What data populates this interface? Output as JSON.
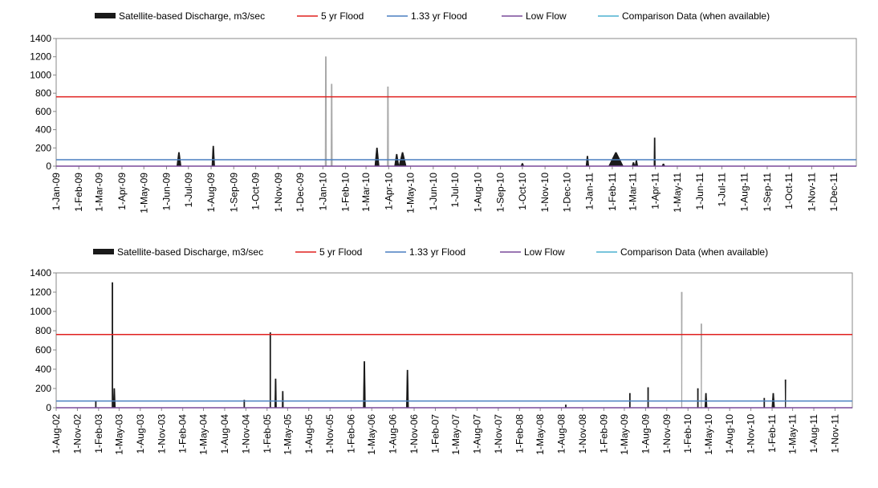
{
  "legend": [
    {
      "label": "Satellite-based Discharge, m3/sec",
      "kind": "area",
      "color": "#1a1a1a"
    },
    {
      "label": "5 yr Flood",
      "kind": "line",
      "color": "#e0201f"
    },
    {
      "label": "1.33 yr Flood",
      "kind": "line",
      "color": "#4a7fc0"
    },
    {
      "label": "Low Flow",
      "kind": "line",
      "color": "#7a4a9a"
    },
    {
      "label": "Comparison Data (when available)",
      "kind": "line",
      "color": "#4bb0d0"
    }
  ],
  "chart_data": [
    {
      "type": "area",
      "title": "",
      "xlabel": "",
      "ylabel": "",
      "ylim": [
        0,
        1400
      ],
      "yticks": [
        0,
        200,
        400,
        600,
        800,
        1000,
        1200,
        1400
      ],
      "grid": false,
      "legend_position": "top",
      "x_ticks": [
        "1-Jan-09",
        "1-Feb-09",
        "1-Mar-09",
        "1-Apr-09",
        "1-May-09",
        "1-Jun-09",
        "1-Jul-09",
        "1-Aug-09",
        "1-Sep-09",
        "1-Oct-09",
        "1-Nov-09",
        "1-Dec-09",
        "1-Jan-10",
        "1-Feb-10",
        "1-Mar-10",
        "1-Apr-10",
        "1-May-10",
        "1-Jun-10",
        "1-Jul-10",
        "1-Aug-10",
        "1-Sep-10",
        "1-Oct-10",
        "1-Nov-10",
        "1-Dec-10",
        "1-Jan-11",
        "1-Feb-11",
        "1-Mar-11",
        "1-Apr-11",
        "1-May-11",
        "1-Jun-11",
        "1-Jul-11",
        "1-Aug-11",
        "1-Sep-11",
        "1-Oct-11",
        "1-Nov-11",
        "1-Dec-11"
      ],
      "x_range": [
        "2009-01-01",
        "2012-01-01"
      ],
      "reference_lines": {
        "5 yr Flood": 760,
        "1.33 yr Flood": 70,
        "Low Flow": 0
      },
      "series": [
        {
          "name": "Satellite-based Discharge, m3/sec",
          "peaks": [
            {
              "date": "2009-06-18",
              "value": 150,
              "half_width_days": 3
            },
            {
              "date": "2009-08-04",
              "value": 220,
              "half_width_days": 2
            },
            {
              "date": "2010-01-05",
              "value": 1200,
              "half_width_days": 1
            },
            {
              "date": "2010-01-13",
              "value": 900,
              "half_width_days": 1
            },
            {
              "date": "2010-03-16",
              "value": 200,
              "half_width_days": 3
            },
            {
              "date": "2010-03-31",
              "value": 870,
              "half_width_days": 1
            },
            {
              "date": "2010-04-12",
              "value": 130,
              "half_width_days": 3
            },
            {
              "date": "2010-04-20",
              "value": 150,
              "half_width_days": 5
            },
            {
              "date": "2010-10-01",
              "value": 30,
              "half_width_days": 2
            },
            {
              "date": "2010-12-29",
              "value": 110,
              "half_width_days": 2
            },
            {
              "date": "2011-02-06",
              "value": 150,
              "half_width_days": 10
            },
            {
              "date": "2011-03-02",
              "value": 40,
              "half_width_days": 2
            },
            {
              "date": "2011-03-06",
              "value": 60,
              "half_width_days": 2
            },
            {
              "date": "2011-03-31",
              "value": 310,
              "half_width_days": 1
            },
            {
              "date": "2011-04-12",
              "value": 25,
              "half_width_days": 2
            }
          ]
        }
      ]
    },
    {
      "type": "area",
      "title": "",
      "xlabel": "",
      "ylabel": "",
      "ylim": [
        0,
        1400
      ],
      "yticks": [
        0,
        200,
        400,
        600,
        800,
        1000,
        1200,
        1400
      ],
      "grid": false,
      "legend_position": "top",
      "x_ticks": [
        "1-Aug-02",
        "1-Nov-02",
        "1-Feb-03",
        "1-May-03",
        "1-Aug-03",
        "1-Nov-03",
        "1-Feb-04",
        "1-May-04",
        "1-Aug-04",
        "1-Nov-04",
        "1-Feb-05",
        "1-May-05",
        "1-Aug-05",
        "1-Nov-05",
        "1-Feb-06",
        "1-May-06",
        "1-Aug-06",
        "1-Nov-06",
        "1-Feb-07",
        "1-May-07",
        "1-Aug-07",
        "1-Nov-07",
        "1-Feb-08",
        "1-May-08",
        "1-Aug-08",
        "1-Nov-08",
        "1-Feb-09",
        "1-May-09",
        "1-Aug-09",
        "1-Nov-09",
        "1-Feb-10",
        "1-May-10",
        "1-Aug-10",
        "1-Nov-10",
        "1-Feb-11",
        "1-May-11",
        "1-Aug-11",
        "1-Nov-11"
      ],
      "x_range": [
        "2002-08-01",
        "2012-01-15"
      ],
      "reference_lines": {
        "5 yr Flood": 760,
        "1.33 yr Flood": 70,
        "Low Flow": 0
      },
      "series": [
        {
          "name": "Satellite-based Discharge, m3/sec",
          "peaks": [
            {
              "date": "2003-01-20",
              "value": 70,
              "half_width_days": 2
            },
            {
              "date": "2003-04-02",
              "value": 1300,
              "half_width_days": 2
            },
            {
              "date": "2003-04-10",
              "value": 200,
              "half_width_days": 5
            },
            {
              "date": "2004-10-25",
              "value": 80,
              "half_width_days": 2
            },
            {
              "date": "2005-02-15",
              "value": 780,
              "half_width_days": 2
            },
            {
              "date": "2005-03-10",
              "value": 300,
              "half_width_days": 4
            },
            {
              "date": "2005-04-10",
              "value": 170,
              "half_width_days": 3
            },
            {
              "date": "2006-03-30",
              "value": 480,
              "half_width_days": 5
            },
            {
              "date": "2006-10-03",
              "value": 390,
              "half_width_days": 5
            },
            {
              "date": "2008-08-20",
              "value": 30,
              "half_width_days": 2
            },
            {
              "date": "2009-05-25",
              "value": 150,
              "half_width_days": 2
            },
            {
              "date": "2009-08-12",
              "value": 210,
              "half_width_days": 2
            },
            {
              "date": "2010-01-05",
              "value": 1200,
              "half_width_days": 1
            },
            {
              "date": "2010-03-16",
              "value": 200,
              "half_width_days": 2
            },
            {
              "date": "2010-03-31",
              "value": 870,
              "half_width_days": 1
            },
            {
              "date": "2010-04-20",
              "value": 150,
              "half_width_days": 5
            },
            {
              "date": "2010-12-29",
              "value": 100,
              "half_width_days": 2
            },
            {
              "date": "2011-02-06",
              "value": 150,
              "half_width_days": 6
            },
            {
              "date": "2011-03-31",
              "value": 290,
              "half_width_days": 1
            }
          ]
        }
      ]
    }
  ]
}
